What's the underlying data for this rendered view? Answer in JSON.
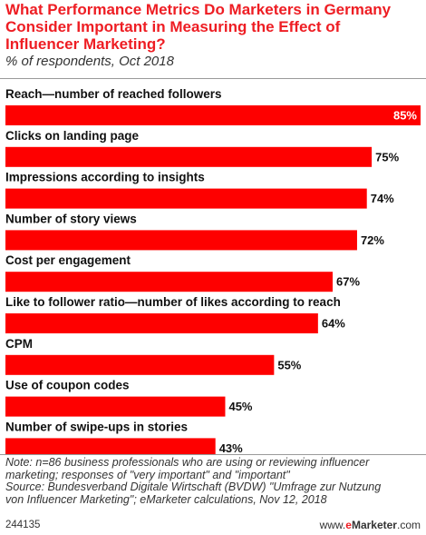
{
  "title": "What Performance Metrics Do Marketers in Germany Consider Important in Measuring the Effect of Influencer Marketing?",
  "subtitle": "% of respondents, Oct 2018",
  "note_lines": [
    "Note: n=86 business professionals who are using or reviewing influencer",
    "marketing; responses of \"very important\" and \"important\"",
    "Source: Bundesverband Digitale Wirtschaft (BVDW) \"Umfrage zur Nutzung",
    "von Influencer Marketing\"; eMarketer calculations, Nov 12, 2018"
  ],
  "footer": {
    "id": "244135",
    "brand_prefix": "www.",
    "brand_e": "e",
    "brand_rest": "Marketer",
    "brand_suffix": ".com"
  },
  "colors": {
    "accent": "#ee1d23",
    "bar": "#fe0000"
  },
  "chart_data": {
    "type": "bar",
    "orientation": "horizontal",
    "categories": [
      "Reach—number of reached followers",
      "Clicks on landing page",
      "Impressions according to insights",
      "Number of story views",
      "Cost per engagement",
      "Like to follower ratio—number of likes according to reach",
      "CPM",
      "Use of coupon codes",
      "Number of swipe-ups in stories"
    ],
    "values": [
      85,
      75,
      74,
      72,
      67,
      64,
      55,
      45,
      43
    ],
    "value_labels": [
      "85%",
      "75%",
      "74%",
      "72%",
      "67%",
      "64%",
      "55%",
      "45%",
      "43%"
    ],
    "unit": "%",
    "xlim": [
      0,
      85
    ],
    "grid": false,
    "legend": "none"
  }
}
